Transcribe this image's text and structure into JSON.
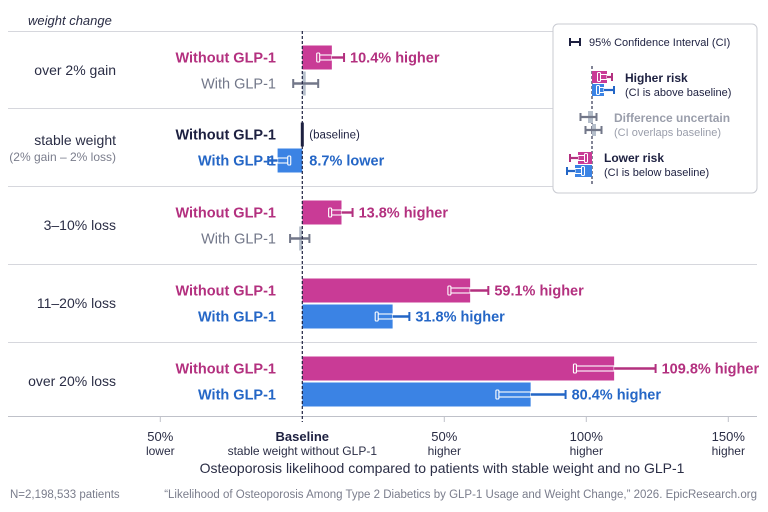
{
  "chart_data": {
    "type": "bar",
    "orientation": "horizontal",
    "title": "",
    "row_header": "weight change",
    "xlabel": "Osteoporosis likelihood compared to patients with stable weight and no GLP-1",
    "ylabel": "weight change",
    "xlim": [
      -50,
      150
    ],
    "baseline_value": 0,
    "grid": false,
    "x_ticks": [
      {
        "value": -50,
        "label": "50%",
        "sublabel": "lower"
      },
      {
        "value": 0,
        "label": "Baseline",
        "sublabel": "stable weight without GLP-1"
      },
      {
        "value": 50,
        "label": "50%",
        "sublabel": "higher"
      },
      {
        "value": 100,
        "label": "100%",
        "sublabel": "higher"
      },
      {
        "value": 150,
        "label": "150%",
        "sublabel": "higher"
      }
    ],
    "categories": [
      {
        "label": "over 2% gain",
        "sublabel": ""
      },
      {
        "label": "stable weight",
        "sublabel": "(2% gain – 2% loss)"
      },
      {
        "label": "3–10% loss",
        "sublabel": ""
      },
      {
        "label": "11–20% loss",
        "sublabel": ""
      },
      {
        "label": "over 20% loss",
        "sublabel": ""
      }
    ],
    "series": [
      {
        "name": "Without GLP-1",
        "color_key": "pink",
        "values": [
          10.4,
          0,
          13.8,
          59.1,
          109.8
        ],
        "ci_low": [
          5.6,
          null,
          9.8,
          51.8,
          96.0
        ],
        "ci_high": [
          14.7,
          null,
          17.7,
          65.5,
          124.4
        ],
        "status": [
          "higher",
          "baseline",
          "higher",
          "higher",
          "higher"
        ],
        "value_labels": [
          "10.4% higher",
          "(baseline)",
          "13.8% higher",
          "59.1% higher",
          "109.8% higher"
        ]
      },
      {
        "name": "With GLP-1",
        "color_key": "blue",
        "values": [
          1.2,
          -8.7,
          -1.1,
          31.8,
          80.4
        ],
        "ci_low": [
          -3.2,
          -12.0,
          -4.3,
          26.2,
          68.7
        ],
        "ci_high": [
          5.6,
          -4.6,
          2.5,
          37.7,
          92.7
        ],
        "status": [
          "uncertain",
          "lower",
          "uncertain",
          "higher",
          "higher"
        ],
        "value_labels": [
          "",
          "8.7% lower",
          "",
          "31.8% higher",
          "80.4% higher"
        ]
      }
    ],
    "legend": {
      "position": "top-right",
      "ci_label": "95% Confidence Interval (CI)",
      "entries": [
        {
          "title": "Higher risk",
          "desc": "(CI is above baseline)"
        },
        {
          "title": "Difference uncertain",
          "desc": "(CI overlaps baseline)"
        },
        {
          "title": "Lower risk",
          "desc": "(CI is below baseline)"
        }
      ]
    }
  },
  "colors": {
    "pink": "#C93B96",
    "pink_dark": "#B3307F",
    "blue": "#3B83E4",
    "blue_dark": "#2466C6",
    "navy": "#1D2040",
    "gray": "#727789",
    "gray_light": "#B5BECA",
    "rule": "#D6D7DD"
  },
  "footer": {
    "sample_size": "N=2,198,533 patients",
    "citation": "“Likelihood of Osteoporosis Among Type 2 Diabetics by GLP-1 Usage and Weight Change,” 2026. EpicResearch.org"
  }
}
